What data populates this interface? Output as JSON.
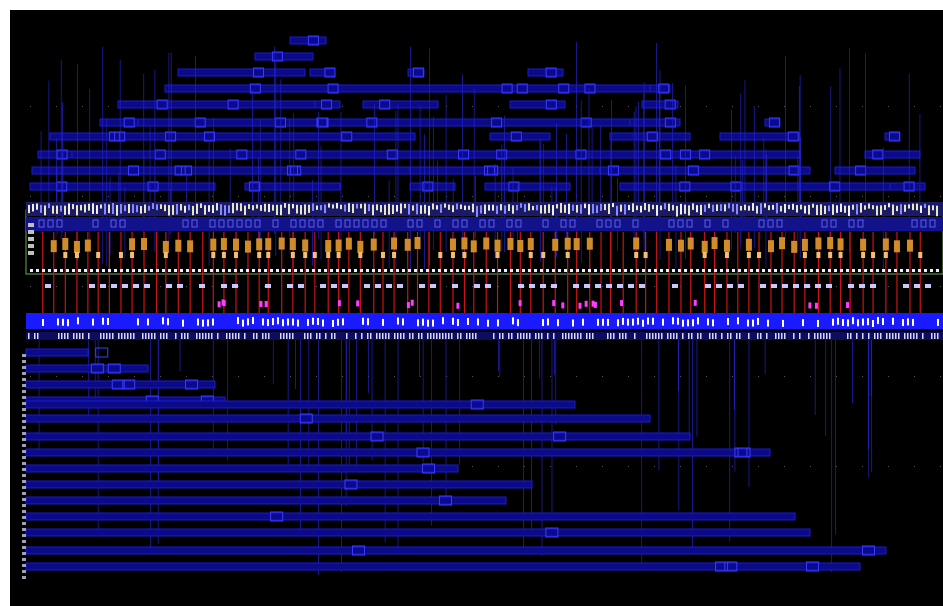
{
  "view": {
    "background": "#000000",
    "frame_color": "#ffffff"
  },
  "layers": {
    "metal_track_color": "#1a1ad0",
    "metal_fill_color": "#0a0a8a",
    "via_stub_color": "#3b3bff",
    "vertical_route_color": "#2424c8",
    "poly_color": "#c81414",
    "diffusion_color": "#d08c28",
    "contact_color": "#f0f0ff",
    "magenta_color": "#ff3cff",
    "supply_rail_color": "#1a1aff",
    "cell_boundary_color": "#6aa84f",
    "grid_dot_color": "#555555"
  },
  "structure": {
    "cell_row_count": 1,
    "upper_routing_track_count": 13,
    "lower_routing_track_count": 15,
    "transistor_column_count": 78
  }
}
